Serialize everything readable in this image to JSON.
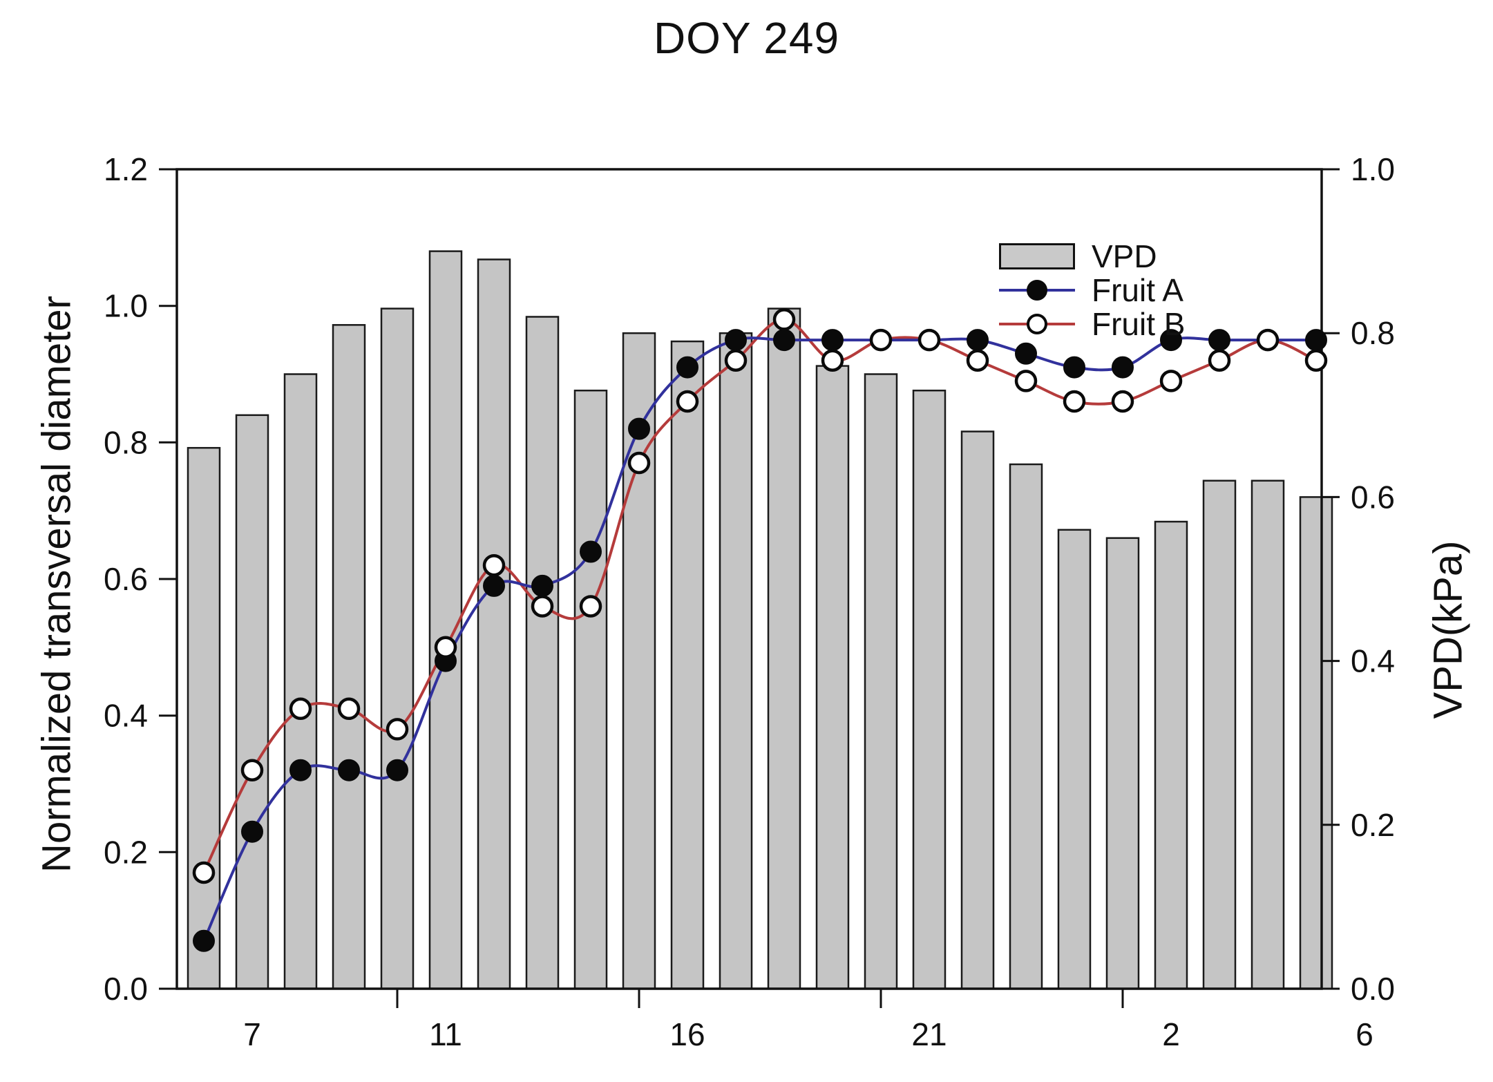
{
  "title": "DOY 249",
  "legend": {
    "items": [
      {
        "label": "VPD",
        "key": "gray-swatch"
      },
      {
        "label": "Fruit A",
        "key": "blue-line-filled-circle"
      },
      {
        "label": "Fruit B",
        "key": "red-line-open-circle"
      }
    ]
  },
  "left_axis": {
    "title": "Normalized transversal diameter",
    "tick_labels": [
      "0.0",
      "0.2",
      "0.4",
      "0.6",
      "0.8",
      "1.0",
      "1.2"
    ],
    "tick_values": [
      0.0,
      0.2,
      0.4,
      0.6,
      0.8,
      1.0,
      1.2
    ]
  },
  "right_axis": {
    "title": "VPD(kPa)",
    "tick_labels": [
      "0.0",
      "0.2",
      "0.4",
      "0.6",
      "0.8",
      "1.0"
    ],
    "tick_values": [
      0.0,
      0.2,
      0.4,
      0.6,
      0.8,
      1.0
    ]
  },
  "x_axis": {
    "tick_labels": [
      "7",
      "11",
      "16",
      "21",
      "2",
      "6"
    ],
    "tick_label_hours": [
      7,
      11,
      16,
      21,
      26,
      30
    ],
    "minor_tick_hours": [
      10,
      15,
      20,
      25
    ]
  },
  "chart_data": {
    "type": "bar+line combo",
    "title": "DOY 249",
    "x_hours": [
      6,
      7,
      8,
      9,
      10,
      11,
      12,
      13,
      14,
      15,
      16,
      17,
      18,
      19,
      20,
      21,
      22,
      23,
      24,
      25,
      26,
      27,
      28,
      29
    ],
    "x_tick_labels": [
      "7",
      "11",
      "16",
      "21",
      "2",
      "6"
    ],
    "x_tick_label_hours": [
      7,
      11,
      16,
      21,
      26,
      30
    ],
    "left_ylim": [
      0,
      1.2
    ],
    "right_ylim": [
      0,
      1.0
    ],
    "grid": false,
    "legend_position": "upper-right-inside",
    "bars": {
      "name": "VPD",
      "axis": "right",
      "unit": "kPa",
      "color": "#c5c5c5",
      "edge_color": "#1a1a1a",
      "values": [
        0.66,
        0.7,
        0.75,
        0.81,
        0.83,
        0.9,
        0.89,
        0.82,
        0.73,
        0.8,
        0.79,
        0.8,
        0.83,
        0.76,
        0.75,
        0.73,
        0.68,
        0.64,
        0.56,
        0.55,
        0.57,
        0.62,
        0.62,
        0.6
      ]
    },
    "series": [
      {
        "name": "Fruit A",
        "axis": "left",
        "color": "#31319c",
        "marker": "filled-circle",
        "marker_color": "#0a0a0a",
        "values": [
          0.07,
          0.23,
          0.32,
          0.32,
          0.32,
          0.48,
          0.59,
          0.59,
          0.64,
          0.82,
          0.91,
          0.95,
          0.95,
          0.95,
          0.95,
          0.95,
          0.95,
          0.93,
          0.91,
          0.91,
          0.95,
          0.95,
          0.95,
          0.95
        ]
      },
      {
        "name": "Fruit B",
        "axis": "left",
        "color": "#b53b3b",
        "marker": "open-circle",
        "marker_color": "#ffffff",
        "values": [
          0.17,
          0.32,
          0.41,
          0.41,
          0.38,
          0.5,
          0.62,
          0.56,
          0.56,
          0.77,
          0.86,
          0.92,
          0.98,
          0.92,
          0.95,
          0.95,
          0.92,
          0.89,
          0.86,
          0.86,
          0.89,
          0.92,
          0.95,
          0.92
        ]
      }
    ]
  }
}
